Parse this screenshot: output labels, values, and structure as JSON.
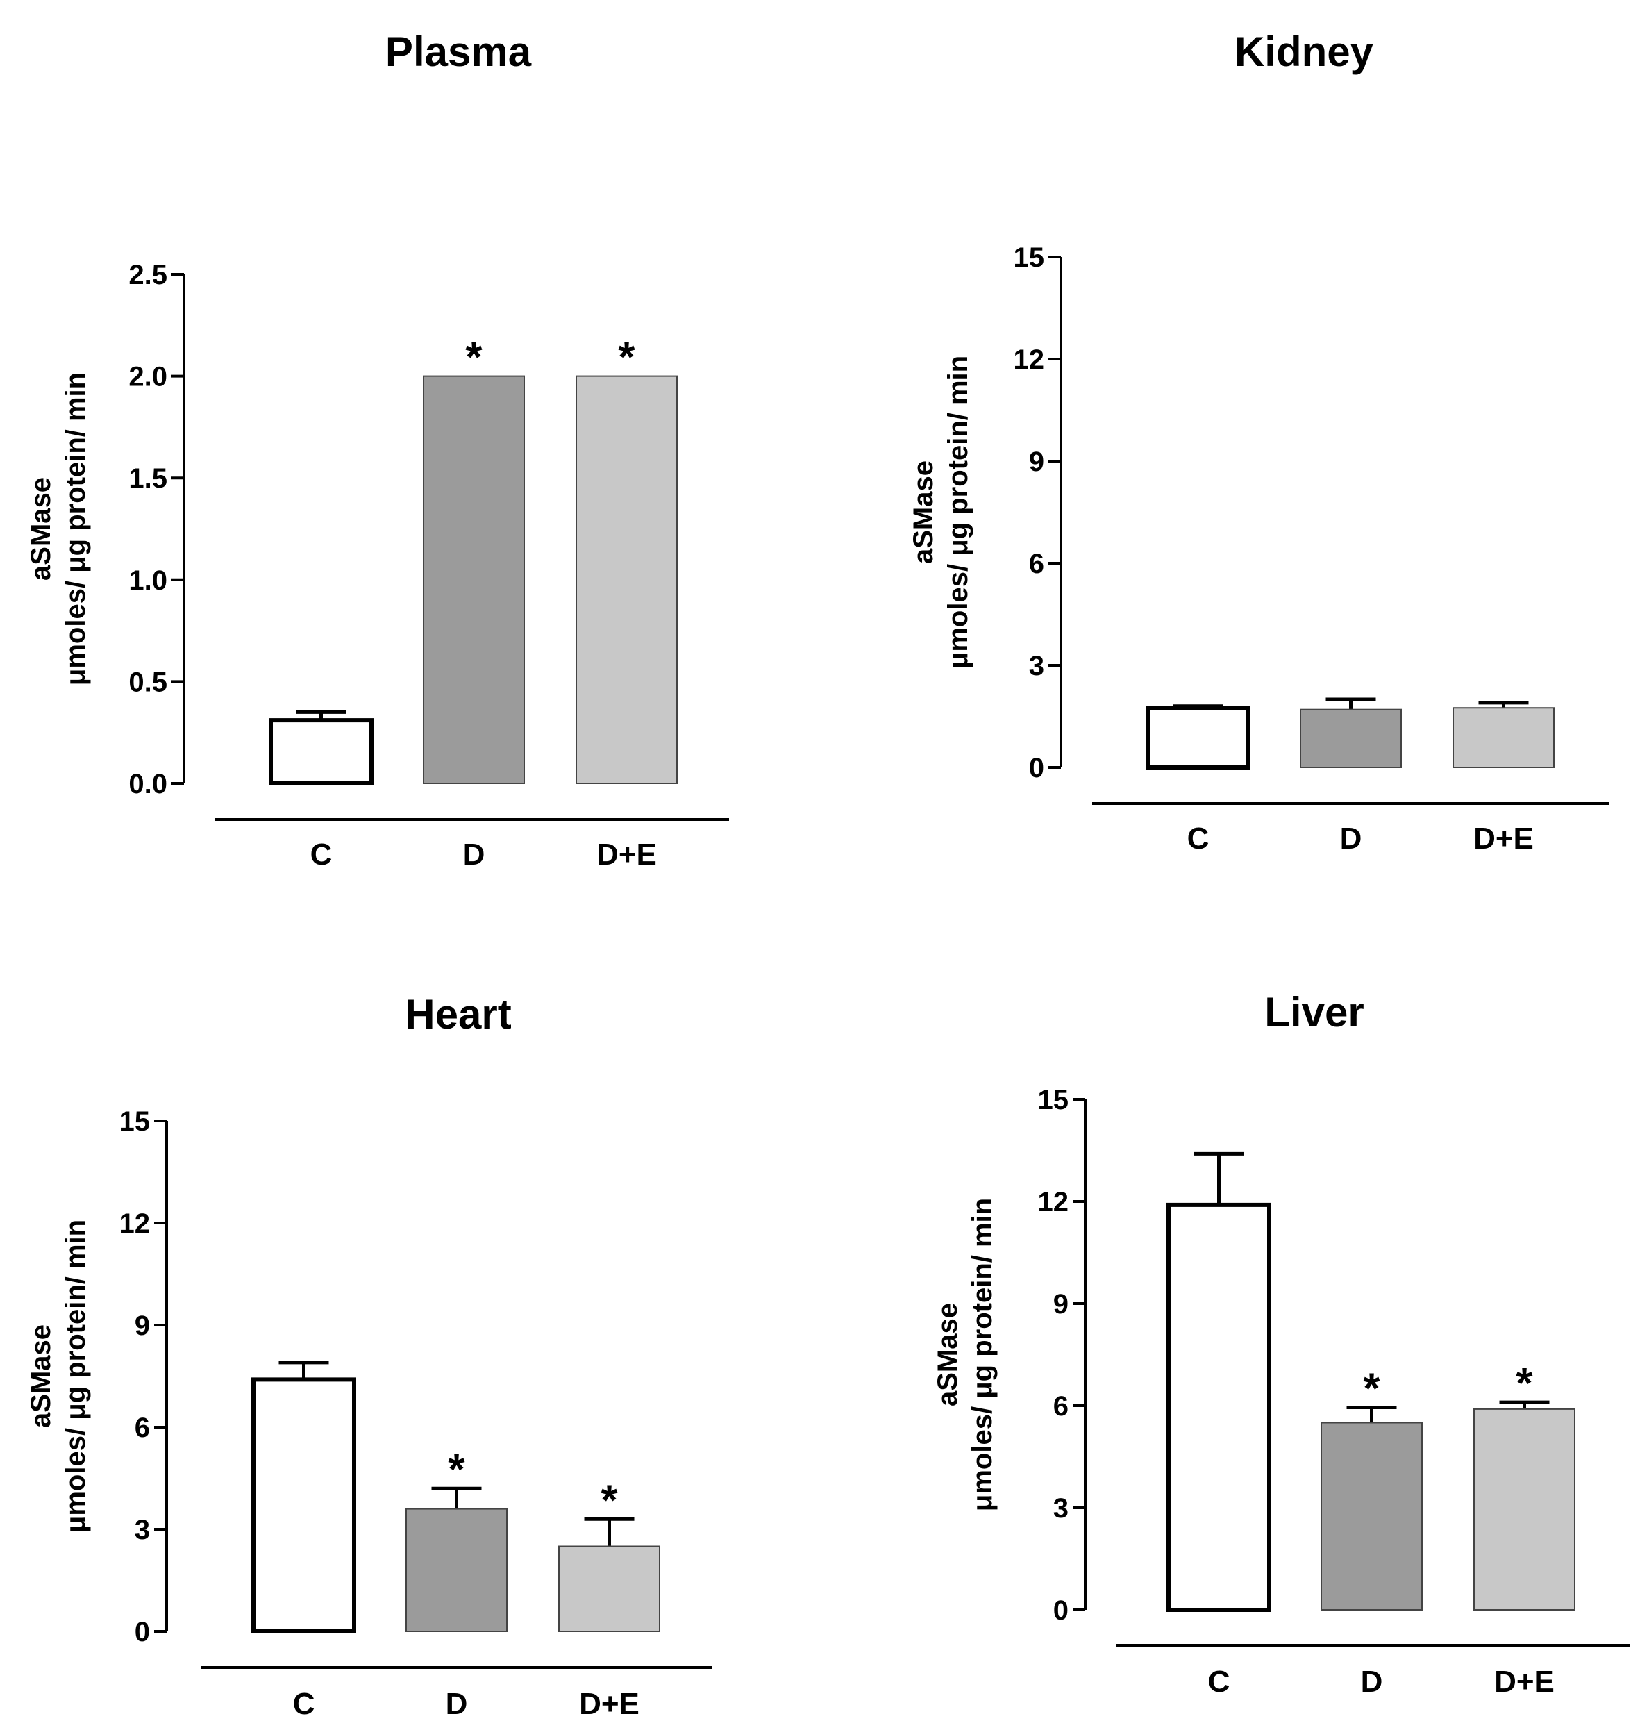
{
  "chart_data": [
    {
      "type": "bar",
      "title": "Plasma",
      "categories": [
        "C",
        "D",
        "D+E"
      ],
      "values": [
        0.31,
        2.0,
        2.0
      ],
      "errors": [
        0.04,
        0,
        0
      ],
      "significance": [
        "",
        "*",
        "*"
      ],
      "bar_colors": [
        "#ffffff",
        "#9b9b9b",
        "#c8c8c8"
      ],
      "ylim": [
        0,
        2.5
      ],
      "yticks": [
        "0.0",
        "0.5",
        "1.0",
        "1.5",
        "2.0",
        "2.5"
      ],
      "ylabel_line1": "aSMase",
      "ylabel_line2": "μmoles/ μg protein/ min",
      "xlabel": ""
    },
    {
      "type": "bar",
      "title": "Kidney",
      "categories": [
        "C",
        "D",
        "D+E"
      ],
      "values": [
        1.75,
        1.7,
        1.75
      ],
      "errors": [
        0.05,
        0.3,
        0.15
      ],
      "significance": [
        "",
        "",
        ""
      ],
      "bar_colors": [
        "#ffffff",
        "#9b9b9b",
        "#c8c8c8"
      ],
      "ylim": [
        0,
        15
      ],
      "yticks": [
        "0",
        "3",
        "6",
        "9",
        "12",
        "15"
      ],
      "ylabel_line1": "aSMase",
      "ylabel_line2": "μmoles/ μg protein/ min",
      "xlabel": ""
    },
    {
      "type": "bar",
      "title": "Heart",
      "categories": [
        "C",
        "D",
        "D+E"
      ],
      "values": [
        7.4,
        3.6,
        2.5
      ],
      "errors": [
        0.5,
        0.6,
        0.8
      ],
      "significance": [
        "",
        "*",
        "*"
      ],
      "bar_colors": [
        "#ffffff",
        "#9b9b9b",
        "#c8c8c8"
      ],
      "ylim": [
        0,
        15
      ],
      "yticks": [
        "0",
        "3",
        "6",
        "9",
        "12",
        "15"
      ],
      "ylabel_line1": "aSMase",
      "ylabel_line2": "μmoles/ μg protein/ min",
      "xlabel": ""
    },
    {
      "type": "bar",
      "title": "Liver",
      "categories": [
        "C",
        "D",
        "D+E"
      ],
      "values": [
        11.9,
        5.5,
        5.9
      ],
      "errors": [
        1.5,
        0.45,
        0.2
      ],
      "significance": [
        "",
        "*",
        "*"
      ],
      "bar_colors": [
        "#ffffff",
        "#9b9b9b",
        "#c8c8c8"
      ],
      "ylim": [
        0,
        15
      ],
      "yticks": [
        "0",
        "3",
        "6",
        "9",
        "12",
        "15"
      ],
      "ylabel_line1": "aSMase",
      "ylabel_line2": "μmoles/ μg protein/ min",
      "xlabel": ""
    }
  ]
}
